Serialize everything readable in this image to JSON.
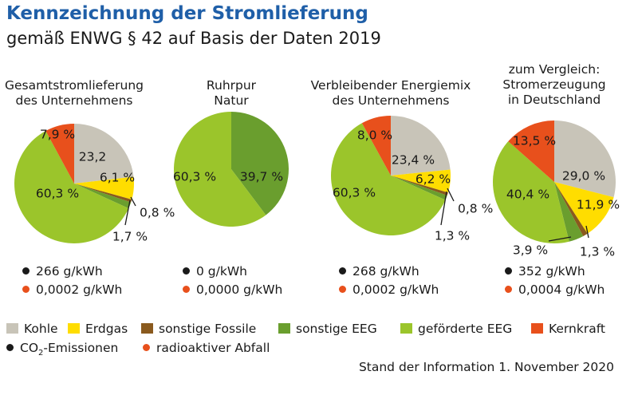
{
  "header": {
    "title": "Kennzeichnung der Stromlieferung",
    "subtitle": "gemäß ENWG § 42 auf Basis der Daten 2019"
  },
  "colors": {
    "kohle": "#c8c4b8",
    "erdgas": "#ffdd00",
    "fossile": "#8a5a1e",
    "eeg": "#6a9e2e",
    "gefoerdert": "#9bc52b",
    "kernkraft": "#e8501c",
    "co2": "#1a1a1a",
    "abfall": "#e8501c"
  },
  "legend": {
    "kohle": "Kohle",
    "erdgas": "Erdgas",
    "fossile": "sonstige Fossile",
    "eeg": "sonstige EEG",
    "gefoerdert": "geförderte EEG",
    "kernkraft": "Kernkraft",
    "co2_pre": "CO",
    "co2_sub": "2",
    "co2_post": "-Emissionen",
    "abfall": "radioaktiver Abfall"
  },
  "footer": "Stand der Information 1. November 2020",
  "chart_data": [
    {
      "type": "pie",
      "title": [
        "Gesamtstromlieferung",
        "des Unternehmens"
      ],
      "slices": [
        {
          "category": "kohle",
          "value": 23.2,
          "label": "23,2"
        },
        {
          "category": "erdgas",
          "value": 6.1,
          "label": "6,1 %"
        },
        {
          "category": "fossile",
          "value": 0.8,
          "label": "0,8 %"
        },
        {
          "category": "eeg",
          "value": 1.7,
          "label": "1,7 %"
        },
        {
          "category": "gefoerdert",
          "value": 60.3,
          "label": "60,3 %"
        },
        {
          "category": "kernkraft",
          "value": 7.9,
          "label": "7,9 %"
        }
      ],
      "co2": "266 g/kWh",
      "abfall": "0,0002 g/kWh"
    },
    {
      "type": "pie",
      "title": [
        "Ruhrpur",
        "Natur"
      ],
      "slices": [
        {
          "category": "eeg",
          "value": 39.7,
          "label": "39,7 %"
        },
        {
          "category": "gefoerdert",
          "value": 60.3,
          "label": "60,3 %"
        }
      ],
      "co2": "0 g/kWh",
      "abfall": "0,0000 g/kWh"
    },
    {
      "type": "pie",
      "title": [
        "Verbleibender Energiemix",
        "des Unternehmens"
      ],
      "slices": [
        {
          "category": "kohle",
          "value": 23.4,
          "label": "23,4 %"
        },
        {
          "category": "erdgas",
          "value": 6.2,
          "label": "6,2 %"
        },
        {
          "category": "fossile",
          "value": 0.8,
          "label": "0,8 %"
        },
        {
          "category": "eeg",
          "value": 1.3,
          "label": "1,3 %"
        },
        {
          "category": "gefoerdert",
          "value": 60.3,
          "label": "60,3 %"
        },
        {
          "category": "kernkraft",
          "value": 8.0,
          "label": "8,0 %"
        }
      ],
      "co2": "268 g/kWh",
      "abfall": "0,0002 g/kWh"
    },
    {
      "type": "pie",
      "title": [
        "zum Vergleich:",
        "Stromerzeugung",
        "in Deutschland"
      ],
      "slices": [
        {
          "category": "kohle",
          "value": 29.0,
          "label": "29,0 %"
        },
        {
          "category": "erdgas",
          "value": 11.9,
          "label": "11,9 %"
        },
        {
          "category": "fossile",
          "value": 1.3,
          "label": "1,3 %"
        },
        {
          "category": "eeg",
          "value": 3.9,
          "label": "3,9 %"
        },
        {
          "category": "gefoerdert",
          "value": 40.4,
          "label": "40,4 %"
        },
        {
          "category": "kernkraft",
          "value": 13.5,
          "label": "13,5 %"
        }
      ],
      "co2": "352 g/kWh",
      "abfall": "0,0004 g/kWh"
    }
  ]
}
